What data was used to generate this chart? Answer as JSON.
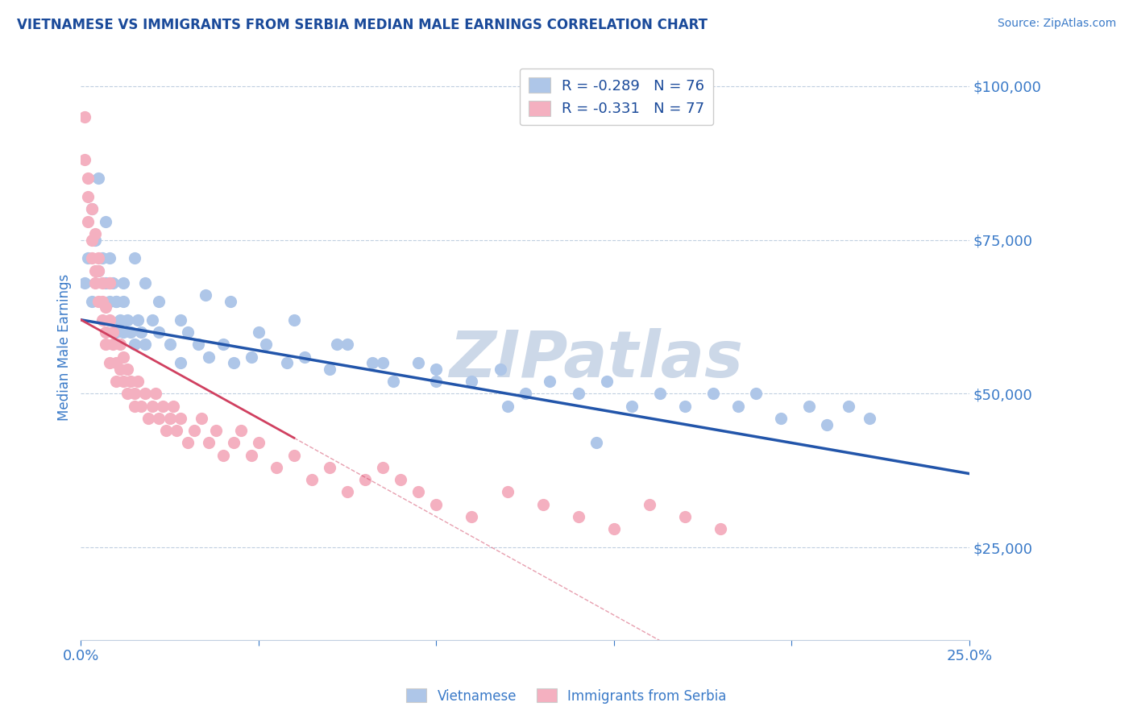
{
  "title": "VIETNAMESE VS IMMIGRANTS FROM SERBIA MEDIAN MALE EARNINGS CORRELATION CHART",
  "source": "Source: ZipAtlas.com",
  "xlabel": "",
  "ylabel": "Median Male Earnings",
  "xlim": [
    0.0,
    0.25
  ],
  "ylim": [
    10000,
    105000
  ],
  "yticks": [
    25000,
    50000,
    75000,
    100000
  ],
  "ytick_labels": [
    "$25,000",
    "$50,000",
    "$75,000",
    "$100,000"
  ],
  "xticks": [
    0.0,
    0.05,
    0.1,
    0.15,
    0.2,
    0.25
  ],
  "xtick_labels": [
    "0.0%",
    "",
    "",
    "",
    "",
    "25.0%"
  ],
  "series1_name": "Vietnamese",
  "series1_R": "-0.289",
  "series1_N": "76",
  "series1_color": "#aec6e8",
  "series1_line_color": "#2255aa",
  "series2_name": "Immigrants from Serbia",
  "series2_R": "-0.331",
  "series2_N": "77",
  "series2_color": "#f4b0c0",
  "series2_line_color": "#d04060",
  "title_color": "#1a4a9a",
  "axis_color": "#3a7ac8",
  "tick_color": "#3a7ac8",
  "watermark": "ZIPatlas",
  "watermark_color": "#ccd8e8",
  "background_color": "#ffffff",
  "grid_color": "#c0cfe0",
  "viet_intercept": 62000,
  "viet_slope": -100000,
  "serbia_intercept": 62000,
  "serbia_slope": -320000,
  "viet_x": [
    0.001,
    0.002,
    0.003,
    0.003,
    0.004,
    0.005,
    0.005,
    0.006,
    0.007,
    0.007,
    0.008,
    0.008,
    0.009,
    0.01,
    0.01,
    0.011,
    0.012,
    0.012,
    0.013,
    0.014,
    0.015,
    0.016,
    0.017,
    0.018,
    0.02,
    0.022,
    0.025,
    0.028,
    0.03,
    0.033,
    0.036,
    0.04,
    0.043,
    0.048,
    0.052,
    0.058,
    0.063,
    0.07,
    0.075,
    0.082,
    0.088,
    0.095,
    0.1,
    0.11,
    0.118,
    0.125,
    0.132,
    0.14,
    0.148,
    0.155,
    0.163,
    0.17,
    0.178,
    0.185,
    0.19,
    0.197,
    0.205,
    0.21,
    0.216,
    0.222,
    0.008,
    0.01,
    0.012,
    0.015,
    0.018,
    0.022,
    0.028,
    0.035,
    0.042,
    0.05,
    0.06,
    0.072,
    0.085,
    0.1,
    0.12,
    0.145
  ],
  "viet_y": [
    68000,
    72000,
    65000,
    80000,
    75000,
    70000,
    85000,
    72000,
    68000,
    78000,
    65000,
    72000,
    68000,
    65000,
    60000,
    62000,
    60000,
    65000,
    62000,
    60000,
    58000,
    62000,
    60000,
    58000,
    62000,
    60000,
    58000,
    55000,
    60000,
    58000,
    56000,
    58000,
    55000,
    56000,
    58000,
    55000,
    56000,
    54000,
    58000,
    55000,
    52000,
    55000,
    54000,
    52000,
    54000,
    50000,
    52000,
    50000,
    52000,
    48000,
    50000,
    48000,
    50000,
    48000,
    50000,
    46000,
    48000,
    45000,
    48000,
    46000,
    68000,
    65000,
    68000,
    72000,
    68000,
    65000,
    62000,
    66000,
    65000,
    60000,
    62000,
    58000,
    55000,
    52000,
    48000,
    42000
  ],
  "serbia_x": [
    0.001,
    0.001,
    0.002,
    0.002,
    0.002,
    0.003,
    0.003,
    0.003,
    0.004,
    0.004,
    0.004,
    0.005,
    0.005,
    0.005,
    0.006,
    0.006,
    0.006,
    0.007,
    0.007,
    0.007,
    0.008,
    0.008,
    0.008,
    0.009,
    0.009,
    0.01,
    0.01,
    0.011,
    0.011,
    0.012,
    0.012,
    0.013,
    0.013,
    0.014,
    0.015,
    0.015,
    0.016,
    0.017,
    0.018,
    0.019,
    0.02,
    0.021,
    0.022,
    0.023,
    0.024,
    0.025,
    0.026,
    0.027,
    0.028,
    0.03,
    0.032,
    0.034,
    0.036,
    0.038,
    0.04,
    0.043,
    0.045,
    0.048,
    0.05,
    0.055,
    0.06,
    0.065,
    0.07,
    0.075,
    0.08,
    0.085,
    0.09,
    0.095,
    0.1,
    0.11,
    0.12,
    0.13,
    0.14,
    0.15,
    0.16,
    0.17,
    0.18
  ],
  "serbia_y": [
    95000,
    88000,
    82000,
    78000,
    85000,
    75000,
    80000,
    72000,
    70000,
    76000,
    68000,
    72000,
    65000,
    70000,
    68000,
    62000,
    65000,
    60000,
    64000,
    58000,
    62000,
    55000,
    68000,
    58000,
    60000,
    55000,
    52000,
    58000,
    54000,
    52000,
    56000,
    50000,
    54000,
    52000,
    50000,
    48000,
    52000,
    48000,
    50000,
    46000,
    48000,
    50000,
    46000,
    48000,
    44000,
    46000,
    48000,
    44000,
    46000,
    42000,
    44000,
    46000,
    42000,
    44000,
    40000,
    42000,
    44000,
    40000,
    42000,
    38000,
    40000,
    36000,
    38000,
    34000,
    36000,
    38000,
    36000,
    34000,
    32000,
    30000,
    34000,
    32000,
    30000,
    28000,
    32000,
    30000,
    28000
  ]
}
